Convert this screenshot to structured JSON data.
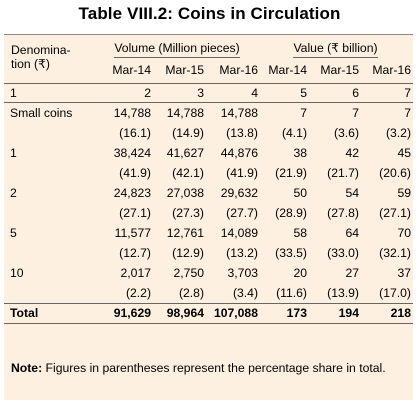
{
  "title": "Table VIII.2: Coins in Circulation",
  "header": {
    "denomination_label": "Denomina-\ntion (₹)",
    "volume_group": "Volume (Million pieces)",
    "value_group": "Value (₹ billion)",
    "years": [
      "Mar-14",
      "Mar-15",
      "Mar-16",
      "Mar-14",
      "Mar-15",
      "Mar-16"
    ],
    "column_numbers": [
      "1",
      "2",
      "3",
      "4",
      "5",
      "6",
      "7"
    ]
  },
  "rows": [
    {
      "label": "Small coins",
      "values": [
        "14,788",
        "14,788",
        "14,788",
        "7",
        "7",
        "7"
      ],
      "shares": [
        "(16.1)",
        "(14.9)",
        "(13.8)",
        "(4.1)",
        "(3.6)",
        "(3.2)"
      ]
    },
    {
      "label": "1",
      "values": [
        "38,424",
        "41,627",
        "44,876",
        "38",
        "42",
        "45"
      ],
      "shares": [
        "(41.9)",
        "(42.1)",
        "(41.9)",
        "(21.9)",
        "(21.7)",
        "(20.6)"
      ]
    },
    {
      "label": "2",
      "values": [
        "24,823",
        "27,038",
        "29,632",
        "50",
        "54",
        "59"
      ],
      "shares": [
        "(27.1)",
        "(27.3)",
        "(27.7)",
        "(28.9)",
        "(27.8)",
        "(27.1)"
      ]
    },
    {
      "label": "5",
      "values": [
        "11,577",
        "12,761",
        "14,089",
        "58",
        "64",
        "70"
      ],
      "shares": [
        "(12.7)",
        "(12.9)",
        "(13.2)",
        "(33.5)",
        "(33.0)",
        "(32.1)"
      ]
    },
    {
      "label": "10",
      "values": [
        "2,017",
        "2,750",
        "3,703",
        "20",
        "27",
        "37"
      ],
      "shares": [
        "(2.2)",
        "(2.8)",
        "(3.4)",
        "(11.6)",
        "(13.9)",
        "(17.0)"
      ]
    }
  ],
  "total": {
    "label": "Total",
    "values": [
      "91,629",
      "98,964",
      "107,088",
      "173",
      "194",
      "218"
    ]
  },
  "note": {
    "label": "Note:",
    "text": " Figures in parentheses represent the percentage share in total."
  }
}
